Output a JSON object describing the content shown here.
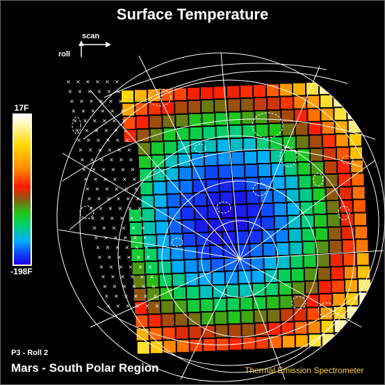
{
  "title": "Surface Temperature",
  "orientation": {
    "scan_label": "scan",
    "roll_label": "roll"
  },
  "colorbar": {
    "max_label": "17F",
    "min_label": "-198F"
  },
  "info": {
    "frame_label": "P3 - Roll 2",
    "region_label": "Mars - South Polar Region",
    "instrument_label": "Thermal Emission Spectrometer"
  },
  "colors": {
    "text": "#ffffff",
    "instrument": "#ffd24a",
    "background": "#000000"
  }
}
